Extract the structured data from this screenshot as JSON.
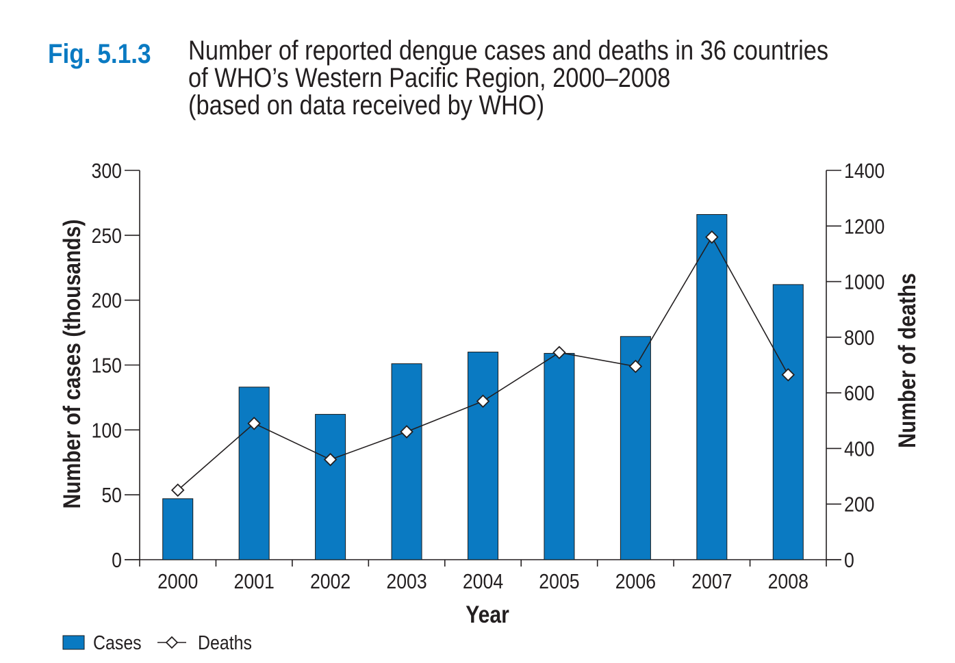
{
  "figure": {
    "label": "Fig. 5.1.3",
    "label_color": "#0a7ac2",
    "title_lines": [
      "Number of reported dengue cases and deaths in 36 countries",
      "of WHO’s Western Pacific Region, 2000–2008",
      "(based on data received by WHO)"
    ]
  },
  "chart_data": {
    "type": "bar",
    "title": "Number of reported dengue cases and deaths in 36 countries of WHO’s Western Pacific Region, 2000–2008 (based on data received by WHO)",
    "xlabel": "Year",
    "ylabel": "Number of cases (thousands)",
    "y2label": "Number of deaths",
    "categories": [
      "2000",
      "2001",
      "2002",
      "2003",
      "2004",
      "2005",
      "2006",
      "2007",
      "2008"
    ],
    "ylim": [
      0,
      300
    ],
    "y_ticks": [
      0,
      50,
      100,
      150,
      200,
      250,
      300
    ],
    "y2lim": [
      0,
      1400
    ],
    "y2_ticks": [
      0,
      200,
      400,
      600,
      800,
      1000,
      1200,
      1400
    ],
    "series": [
      {
        "name": "Cases",
        "kind": "bar",
        "axis": "left",
        "color": "#0a7ac2",
        "values": [
          47,
          133,
          112,
          151,
          160,
          159,
          172,
          266,
          212
        ]
      },
      {
        "name": "Deaths",
        "kind": "line",
        "axis": "right",
        "marker": "diamond",
        "color": "#231f20",
        "values": [
          250,
          490,
          360,
          460,
          570,
          745,
          695,
          1160,
          665
        ]
      }
    ],
    "legend": {
      "position": "bottom-left",
      "items": [
        {
          "label": "Cases",
          "symbol": "bar-swatch"
        },
        {
          "label": "Deaths",
          "symbol": "line-diamond"
        }
      ]
    },
    "grid": false
  }
}
